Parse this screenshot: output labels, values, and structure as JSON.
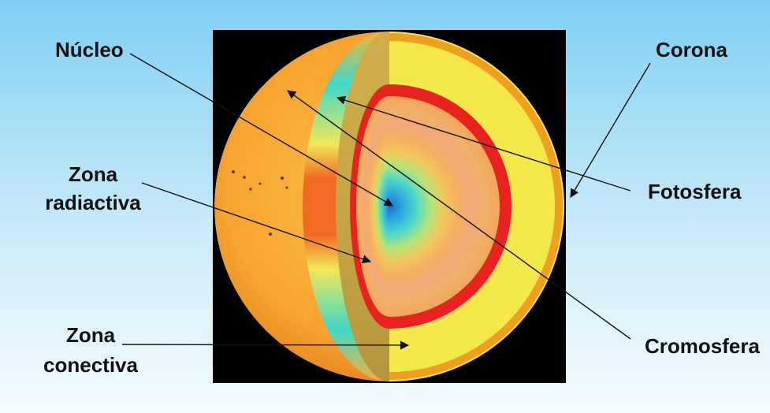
{
  "labels": {
    "nucleo": "Núcleo",
    "zona_radiactiva_1": "Zona",
    "zona_radiactiva_2": "radiactiva",
    "zona_conectiva_1": "Zona",
    "zona_conectiva_2": "conectiva",
    "corona": "Corona",
    "fotosfera": "Fotosfera",
    "cromosfera": "Cromosfera"
  },
  "colors": {
    "background_top": "#7fd0f4",
    "background_bottom": "#f3fbfe",
    "panel": "#000000",
    "sun_surface": "#f7a431",
    "core_center": "#1a6fd0",
    "convective_band": "#40d6c8",
    "red_ring": "#e8231f",
    "yellow_layer": "#f4e84a"
  }
}
